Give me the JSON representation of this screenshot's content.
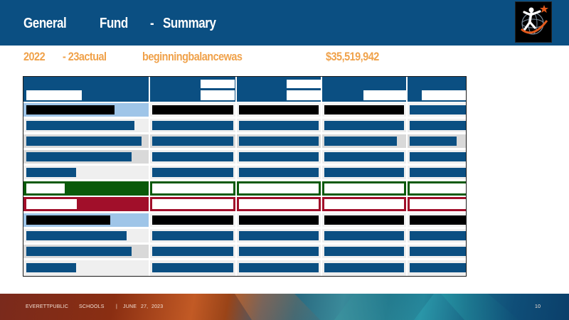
{
  "header": {
    "title_words": [
      "General",
      "Fund",
      "-",
      "Summary"
    ]
  },
  "subtitle": {
    "words": [
      "2022",
      "- 23actual",
      "beginningbalancewas",
      "$35,519,942"
    ]
  },
  "logo": {
    "icon": "runner-globe-star-icon",
    "colors": {
      "background": "#000000",
      "figure": "#ffffff",
      "swoosh": "#e35a1c",
      "star": "#e35a1c",
      "globe": "#7a8a9a"
    }
  },
  "table": {
    "colors": {
      "header": "#0b4f82",
      "light_blue": "#9fc5e8",
      "gray": "#d9d9d9",
      "light_gray": "#efefef",
      "green": "#0b5a0b",
      "red": "#a10f2a",
      "black": "#000000",
      "bar_blue": "#0b4f82"
    }
  },
  "footer": {
    "org_word1": "EVERETTPUBLIC",
    "org_word2": "SCHOOLS",
    "separator": "|",
    "date_month": "JUNE",
    "date_day": "27,",
    "date_year": "2023",
    "page_number": "10"
  }
}
